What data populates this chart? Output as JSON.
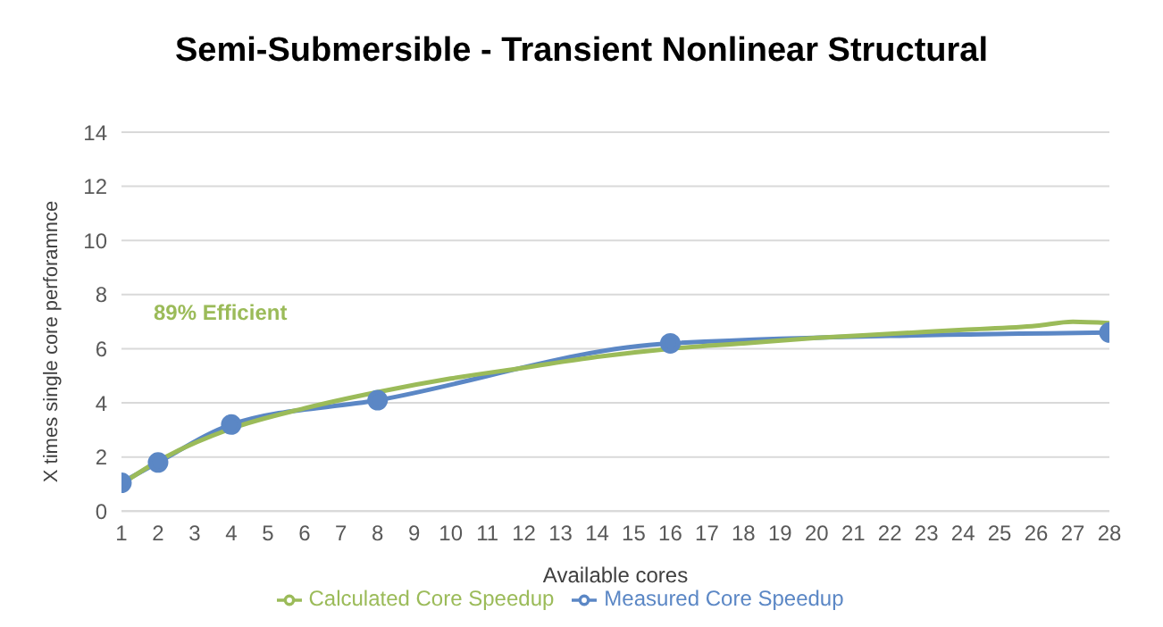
{
  "chart_data": {
    "type": "line",
    "title": "Semi-Submersible - Transient Nonlinear Structural",
    "xlabel": "Available cores",
    "ylabel": "X times single core perforamnce",
    "annotations": [
      "89% Efficient"
    ],
    "xlim": [
      1,
      28
    ],
    "xticks": [
      1,
      2,
      3,
      4,
      5,
      6,
      7,
      8,
      9,
      10,
      11,
      12,
      13,
      14,
      15,
      16,
      17,
      18,
      19,
      20,
      21,
      22,
      23,
      24,
      25,
      26,
      27,
      28
    ],
    "ylim": [
      0,
      14
    ],
    "yticks": [
      0,
      2,
      4,
      6,
      8,
      10,
      12,
      14
    ],
    "grid": "y",
    "legend": "bottom",
    "series": [
      {
        "name": "Measured Core Speedup",
        "color": "#5b87c5",
        "marker": "circle",
        "x": [
          1,
          2,
          4,
          8,
          16,
          28
        ],
        "values": [
          1.05,
          1.8,
          3.2,
          4.1,
          6.2,
          6.6
        ]
      },
      {
        "name": "Calculated Core Speedup",
        "color": "#9bbb59",
        "marker": "none",
        "x": [
          1,
          2,
          4,
          6,
          8,
          10,
          12,
          14,
          16,
          18,
          20,
          22,
          24,
          26,
          27,
          28
        ],
        "values": [
          1.0,
          1.85,
          3.05,
          3.8,
          4.4,
          4.9,
          5.3,
          5.7,
          6.0,
          6.2,
          6.4,
          6.55,
          6.7,
          6.85,
          7.0,
          6.95
        ]
      }
    ]
  }
}
